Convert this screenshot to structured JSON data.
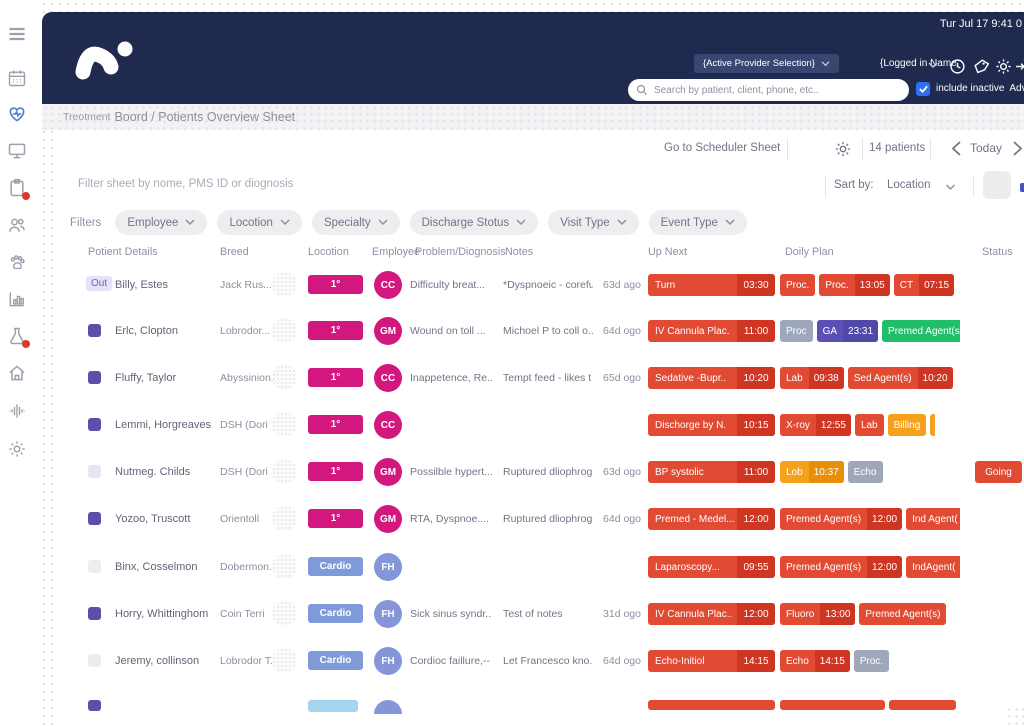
{
  "colors": {
    "navy": "#202a4e",
    "red": "#e14a33",
    "redDark": "#ce3523",
    "orange": "#f5a11c",
    "orangeDark": "#e88f07",
    "gray": "#9ea8ba",
    "purple": "#5b50b5",
    "purpleDark": "#5149a9",
    "green": "#21be6a",
    "magenta": "#d2187e",
    "blue": "#8496d8",
    "cardio": "#7e9ad8",
    "cyan": "#a5d5ef",
    "squareDark": "#5a50aa",
    "squareLavender": "#e6e4f7",
    "squareGray": "#ededf1",
    "accentBlue": "#2d6ff7"
  },
  "sidebar": {
    "items": [
      {
        "name": "menu-icon"
      },
      {
        "name": "calendar-icon"
      },
      {
        "name": "heart-pulse-icon",
        "active": true
      },
      {
        "name": "monitor-icon"
      },
      {
        "name": "clipboard-icon",
        "badge": true
      },
      {
        "name": "users-icon"
      },
      {
        "name": "paw-icon"
      },
      {
        "name": "bar-chart-icon"
      },
      {
        "name": "flask-icon",
        "badge": true
      },
      {
        "name": "home-icon"
      },
      {
        "name": "waveform-icon"
      },
      {
        "name": "settings-icon"
      }
    ]
  },
  "header": {
    "clock": "Tur Jul 17 9:41 0",
    "provider_button": "{Active Provider Selection}",
    "logged_in_label": "{Logged in Name",
    "search_placeholder": "Search by patient, client, phone, etc..",
    "include_inactive_label": "include inactive",
    "advanced_label": "Advanced s"
  },
  "breadcrumb": {
    "prefix": "Treotment",
    "title": "Boord / Potients Overview Sheet"
  },
  "toolbar": {
    "scheduler_link": "Go to Scheduler Sheet",
    "patient_count": "14 patients",
    "today_label": "Today"
  },
  "filter_bar": {
    "placeholder": "Filter sheet by nome, PMS ID or diognosis",
    "sort_label": "Sart by:",
    "sort_value": "Location"
  },
  "filters": {
    "label": "Filters",
    "items": [
      "Employee",
      "Locotion",
      "Specialty",
      "Discharge Stotus",
      "Visit Type",
      "Event Type"
    ]
  },
  "table": {
    "headers": [
      "Potient Details",
      "Breed",
      "Locotion",
      "Employee",
      "Problem/Diognosis",
      "Notes",
      "Up Next",
      "Doily Plan",
      "Status"
    ],
    "out_label": "Out",
    "rows": [
      {
        "marker": "out",
        "name": "Billy, Estes",
        "breed": "Jack Rus...",
        "location": {
          "label": "1°",
          "color": "magenta"
        },
        "employee": {
          "initials": "CC",
          "color": "magenta"
        },
        "problem": "Difficulty breat...",
        "notes": "*Dyspnoeic - corefu..",
        "age": "63d ago",
        "up_next": {
          "label": "Turn",
          "time": "03:30",
          "color": "red"
        },
        "plan": [
          {
            "label": "Proc.",
            "color": "red"
          },
          {
            "label": "Proc.",
            "time": "13:05",
            "color": "red"
          },
          {
            "label": "CT",
            "time": "07:15",
            "color": "red"
          }
        ],
        "status": null
      },
      {
        "marker": "dark",
        "name": "Erlc, Clopton",
        "breed": "Lobrodor...",
        "location": {
          "label": "1°",
          "color": "magenta"
        },
        "employee": {
          "initials": "GM",
          "color": "magenta"
        },
        "problem": "Wound on toll ...",
        "notes": "Michoel P to coll o..",
        "age": "64d ogo",
        "up_next": {
          "label": "IV Cannula Plac.",
          "time": "11:00",
          "color": "red"
        },
        "plan": [
          {
            "label": "Proc",
            "color": "gray"
          },
          {
            "label": "GA",
            "time": "23:31",
            "color": "purple"
          },
          {
            "label": "Premed Agent(s",
            "color": "green",
            "cut": true
          }
        ],
        "status": null
      },
      {
        "marker": "dark",
        "name": "Fluffy, Taylor",
        "breed": "Abyssinion.",
        "location": {
          "label": "1°",
          "color": "magenta"
        },
        "employee": {
          "initials": "CC",
          "color": "magenta"
        },
        "problem": "Inappetence, Re..",
        "notes": "Tempt feed - likes t",
        "age": "65d ogo",
        "up_next": {
          "label": "Sedative -Bupr..",
          "time": "10:20",
          "color": "red"
        },
        "plan": [
          {
            "label": "Lab",
            "time": "09:38",
            "color": "red"
          },
          {
            "label": "Sed Agent(s)",
            "time": "10:20",
            "color": "red"
          }
        ],
        "status": null
      },
      {
        "marker": "dark",
        "name": "Lemmi, Horgreaves",
        "breed": "DSH (Dori",
        "location": {
          "label": "1°",
          "color": "magenta"
        },
        "employee": {
          "initials": "CC",
          "color": "magenta"
        },
        "problem": "",
        "notes": "",
        "age": "",
        "up_next": {
          "label": "Dischorge by N.",
          "time": "10:15",
          "color": "red"
        },
        "plan": [
          {
            "label": "X-roy",
            "time": "12:55",
            "color": "red"
          },
          {
            "label": "Lab",
            "color": "red"
          },
          {
            "label": "Billing",
            "color": "orange"
          },
          {
            "sliver": true,
            "color": "orange"
          }
        ],
        "status": null
      },
      {
        "marker": "lavender",
        "name": "Nutmeg. Childs",
        "breed": "DSH (Dori",
        "location": {
          "label": "1°",
          "color": "magenta"
        },
        "employee": {
          "initials": "GM",
          "color": "magenta"
        },
        "problem": "Possilble hypert...",
        "notes": "Ruptured dliophrog-",
        "age": "63d ogo",
        "up_next": {
          "label": "BP systolic",
          "time": "11:00",
          "color": "red"
        },
        "plan": [
          {
            "label": "Lob",
            "time": "10:37",
            "color": "orange"
          },
          {
            "label": "Echo",
            "color": "gray"
          }
        ],
        "status": "Going"
      },
      {
        "marker": "dark",
        "name": "Yozoo, Truscott",
        "breed": "Orientoll",
        "location": {
          "label": "1°",
          "color": "magenta"
        },
        "employee": {
          "initials": "GM",
          "color": "magenta"
        },
        "problem": "RTA, Dyspnoe....",
        "notes": "Ruptured dliophrog--",
        "age": "64d ogo",
        "up_next": {
          "label": "Premed - Medel...",
          "time": "12:00",
          "color": "red"
        },
        "plan": [
          {
            "label": "Premed Agent(s)",
            "time": "12:00",
            "color": "red"
          },
          {
            "label": "Ind Agent(",
            "color": "red",
            "cut": true
          }
        ],
        "status": null
      },
      {
        "marker": "gray",
        "name": "Binx, Cosselmon",
        "breed": "Dobermon.",
        "location": {
          "label": "Cardio",
          "color": "cardio"
        },
        "employee": {
          "initials": "FH",
          "color": "blue"
        },
        "problem": "",
        "notes": "",
        "age": "",
        "up_next": {
          "label": "Laparoscopy...",
          "time": "09:55",
          "color": "red"
        },
        "plan": [
          {
            "label": "Premed Agent(s)",
            "time": "12:00",
            "color": "red"
          },
          {
            "label": "IndAgent(",
            "color": "red",
            "cut": true
          }
        ],
        "status": null
      },
      {
        "marker": "dark",
        "name": "Horry, Whittinghom",
        "breed": "Coin Terri",
        "location": {
          "label": "Cardio",
          "color": "cardio"
        },
        "employee": {
          "initials": "FH",
          "color": "blue"
        },
        "problem": "Sick sinus syndr..",
        "notes": "Test of notes",
        "age": "31d ogo",
        "up_next": {
          "label": "IV Cannula Plac..",
          "time": "12:00",
          "color": "red"
        },
        "plan": [
          {
            "label": "Fluoro",
            "time": "13:00",
            "color": "red"
          },
          {
            "label": "Premed Agent(s)",
            "color": "red"
          }
        ],
        "status": null
      },
      {
        "marker": "gray",
        "name": "Jeremy, collinson",
        "breed": "Lobrodor T..",
        "location": {
          "label": "Cardio",
          "color": "cardio"
        },
        "employee": {
          "initials": "FH",
          "color": "blue"
        },
        "problem": "Cordioc faillure,--",
        "notes": "Let Francesco kno..",
        "age": "64d ogo",
        "up_next": {
          "label": "Echo-Initiol",
          "time": "14:15",
          "color": "red"
        },
        "plan": [
          {
            "label": "Echo",
            "time": "14:15",
            "color": "red"
          },
          {
            "label": "Proc.",
            "color": "gray"
          }
        ],
        "status": null
      },
      {
        "partial": true,
        "marker": "dark",
        "name": "",
        "breed": "",
        "location": {
          "label": "",
          "color": "cyan"
        },
        "employee": {
          "initials": "",
          "color": "blue"
        },
        "problem": "",
        "notes": "",
        "age": "",
        "up_next": {
          "partial": true,
          "color": "red"
        },
        "plan": [
          {
            "partial": true,
            "width": 105,
            "color": "red"
          },
          {
            "partial": true,
            "width": 67,
            "color": "red"
          }
        ],
        "status": null
      }
    ]
  }
}
